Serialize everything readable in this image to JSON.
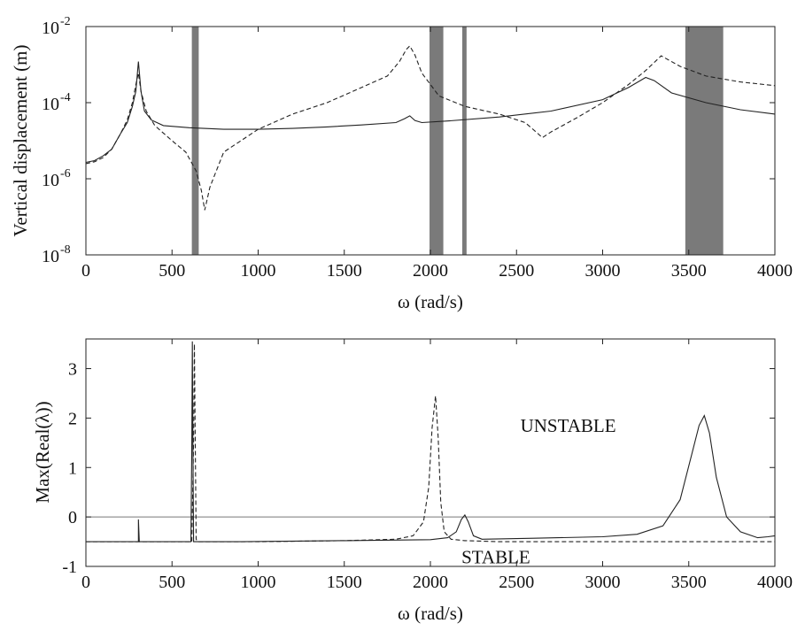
{
  "chart_data": [
    {
      "type": "line",
      "yscale": "log",
      "xlabel": "ω (rad/s)",
      "ylabel": "Vertical displacement (m)",
      "xlim": [
        0,
        4000
      ],
      "ylim": [
        1e-08,
        0.01
      ],
      "xticks": [
        "0",
        "500",
        "1000",
        "1500",
        "2000",
        "2500",
        "3000",
        "3500",
        "4000"
      ],
      "yticks": [
        {
          "base": "10",
          "exp": "-8"
        },
        {
          "base": "10",
          "exp": "-6"
        },
        {
          "base": "10",
          "exp": "-4"
        },
        {
          "base": "10",
          "exp": "-2"
        }
      ],
      "shaded_bands": [
        [
          615,
          655
        ],
        [
          1995,
          2075
        ],
        [
          2185,
          2210
        ],
        [
          3480,
          3700
        ]
      ],
      "series": [
        {
          "style": "solid",
          "x": [
            0,
            50,
            100,
            150,
            200,
            240,
            270,
            290,
            305,
            320,
            340,
            380,
            450,
            600,
            800,
            1000,
            1200,
            1400,
            1600,
            1800,
            1850,
            1880,
            1910,
            1950,
            2100,
            2400,
            2700,
            3000,
            3150,
            3250,
            3300,
            3400,
            3600,
            3800,
            4000
          ],
          "y": [
            2.7e-06,
            3e-06,
            4e-06,
            6e-06,
            1.5e-05,
            3e-05,
            8e-05,
            0.0002,
            0.0012,
            0.0002,
            6e-05,
            3.5e-05,
            2.5e-05,
            2.2e-05,
            2e-05,
            2e-05,
            2.1e-05,
            2.3e-05,
            2.6e-05,
            3e-05,
            3.8e-05,
            4.5e-05,
            3.4e-05,
            3e-05,
            3.3e-05,
            4.2e-05,
            6e-05,
            0.00012,
            0.00025,
            0.00046,
            0.00038,
            0.00018,
            0.0001,
            6.5e-05,
            5e-05
          ]
        },
        {
          "style": "dashed",
          "x": [
            0,
            50,
            100,
            150,
            200,
            240,
            270,
            290,
            305,
            320,
            350,
            400,
            500,
            580,
            640,
            670,
            690,
            720,
            800,
            1000,
            1200,
            1400,
            1600,
            1750,
            1820,
            1860,
            1880,
            1910,
            1950,
            2050,
            2200,
            2400,
            2550,
            2620,
            2650,
            2700,
            2850,
            3000,
            3150,
            3250,
            3340,
            3450,
            3600,
            3800,
            4000
          ],
          "y": [
            2.5e-06,
            2.8e-06,
            3.6e-06,
            6e-06,
            1.5e-05,
            3.5e-05,
            0.0001,
            0.0003,
            0.0006,
            0.0002,
            6e-05,
            2.5e-05,
            1e-05,
            5e-06,
            1.6e-06,
            5e-07,
            1.5e-07,
            6e-07,
            5e-06,
            2e-05,
            5e-05,
            0.0001,
            0.00025,
            0.0005,
            0.0012,
            0.0025,
            0.0031,
            0.0018,
            0.0006,
            0.00015,
            8e-05,
            5e-05,
            3e-05,
            1.6e-05,
            1.2e-05,
            1.7e-05,
            4e-05,
            0.0001,
            0.0003,
            0.0007,
            0.0017,
            0.0009,
            0.0005,
            0.00035,
            0.00028
          ]
        }
      ]
    },
    {
      "type": "line",
      "xlabel": "ω (rad/s)",
      "ylabel": "Max(Real(λ))",
      "xlim": [
        0,
        4000
      ],
      "ylim": [
        -1,
        3.6
      ],
      "xticks": [
        "0",
        "500",
        "1000",
        "1500",
        "2000",
        "2500",
        "3000",
        "3500",
        "4000"
      ],
      "yticks": [
        "-1",
        "0",
        "1",
        "2",
        "3"
      ],
      "annotations": [
        {
          "text": "UNSTABLE",
          "x": 2800,
          "y": 1.85
        },
        {
          "text": "STABLE",
          "x": 2380,
          "y": -0.81
        }
      ],
      "reference_line": 0,
      "series": [
        {
          "style": "solid",
          "x": [
            0,
            300,
            305,
            305,
            310,
            550,
            600,
            610,
            615,
            618,
            621,
            625,
            630,
            640,
            900,
            1500,
            2000,
            2100,
            2150,
            2180,
            2200,
            2220,
            2250,
            2300,
            2600,
            3000,
            3200,
            3350,
            3450,
            3520,
            3560,
            3590,
            3620,
            3660,
            3720,
            3800,
            3900,
            3960,
            4000
          ],
          "y": [
            -0.5,
            -0.5,
            -0.5,
            -0.05,
            -0.5,
            -0.5,
            -0.5,
            -0.5,
            1.5,
            3.55,
            1.5,
            -0.5,
            -0.5,
            -0.5,
            -0.5,
            -0.48,
            -0.46,
            -0.42,
            -0.3,
            -0.05,
            0.04,
            -0.1,
            -0.38,
            -0.45,
            -0.43,
            -0.4,
            -0.35,
            -0.18,
            0.35,
            1.3,
            1.85,
            2.05,
            1.7,
            0.8,
            0.0,
            -0.3,
            -0.42,
            -0.4,
            -0.38
          ]
        },
        {
          "style": "dashed",
          "x": [
            0,
            600,
            615,
            625,
            630,
            635,
            640,
            650,
            700,
            1000,
            1500,
            1800,
            1900,
            1960,
            1990,
            2010,
            2030,
            2045,
            2060,
            2080,
            2120,
            2200,
            2400,
            3000,
            3500,
            3800,
            4000
          ],
          "y": [
            -0.5,
            -0.5,
            -0.5,
            1.5,
            3.5,
            1.5,
            -0.45,
            -0.5,
            -0.5,
            -0.5,
            -0.48,
            -0.45,
            -0.38,
            -0.1,
            0.6,
            1.8,
            2.45,
            1.6,
            0.3,
            -0.3,
            -0.45,
            -0.48,
            -0.5,
            -0.5,
            -0.5,
            -0.5,
            -0.5
          ]
        }
      ]
    }
  ]
}
